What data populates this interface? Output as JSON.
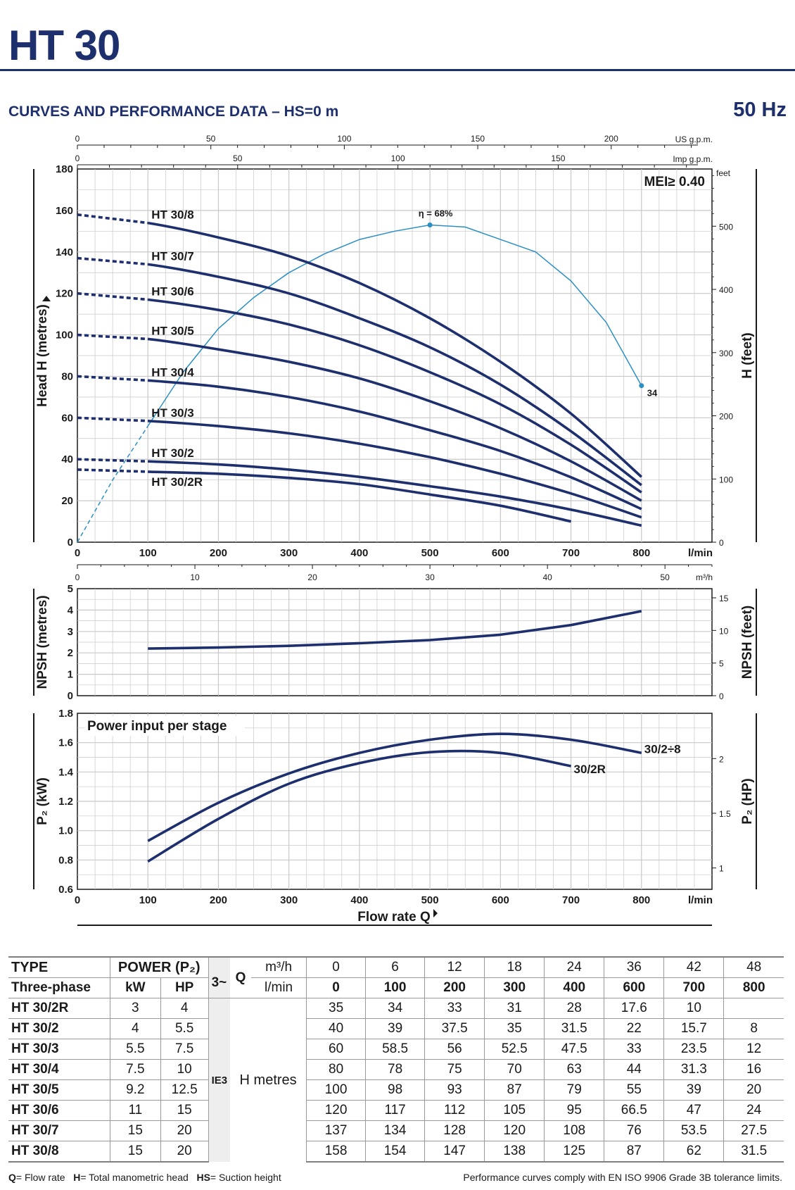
{
  "header": {
    "title": "HT 30",
    "subtitle": "CURVES AND PERFORMANCE DATA  –  HS=0 m",
    "frequency": "50 Hz"
  },
  "colors": {
    "navy": "#1e2f6e",
    "efficiency": "#2b8fc4",
    "grid": "#c8c8c8"
  },
  "chart_data": [
    {
      "type": "line",
      "name_key": "head",
      "x_unit": "l/min",
      "ylabel": "Head H (metres)",
      "ylabel_right": "H (feet)",
      "xlim": [
        0,
        900
      ],
      "ylim": [
        0,
        180
      ],
      "y_ticks": [
        0,
        20,
        40,
        60,
        80,
        100,
        120,
        140,
        160,
        180
      ],
      "x_ticks": [
        0,
        100,
        200,
        300,
        400,
        500,
        600,
        700,
        800
      ],
      "right_unit": "feet",
      "right_ticks": [
        0,
        100,
        200,
        300,
        400,
        500
      ],
      "top_axis_us": {
        "unit": "US g.p.m.",
        "ticks": [
          0,
          50,
          100,
          150,
          200
        ]
      },
      "top_axis_imp": {
        "unit": "Imp g.p.m.",
        "ticks": [
          0,
          50,
          100,
          150
        ]
      },
      "bottom_m3h": {
        "unit": "m³/h",
        "ticks": [
          0,
          10,
          20,
          30,
          40,
          50
        ]
      },
      "annotation_mei": "MEI≥ 0.40",
      "series": [
        {
          "name": "HT 30/8",
          "x": [
            0,
            100,
            200,
            300,
            400,
            500,
            600,
            700,
            800
          ],
          "y": [
            158,
            154,
            147,
            138,
            125,
            108,
            87,
            62,
            31.5
          ]
        },
        {
          "name": "HT 30/7",
          "x": [
            0,
            100,
            200,
            300,
            400,
            500,
            600,
            700,
            800
          ],
          "y": [
            137,
            134,
            128,
            120,
            108,
            94,
            76,
            53.5,
            27.5
          ]
        },
        {
          "name": "HT 30/6",
          "x": [
            0,
            100,
            200,
            300,
            400,
            500,
            600,
            700,
            800
          ],
          "y": [
            120,
            117,
            112,
            105,
            95,
            82,
            66.5,
            47,
            24
          ]
        },
        {
          "name": "HT 30/5",
          "x": [
            0,
            100,
            200,
            300,
            400,
            500,
            600,
            700,
            800
          ],
          "y": [
            100,
            98,
            93,
            87,
            79,
            68,
            55,
            39,
            20
          ]
        },
        {
          "name": "HT 30/4",
          "x": [
            0,
            100,
            200,
            300,
            400,
            500,
            600,
            700,
            800
          ],
          "y": [
            80,
            78,
            75,
            70,
            63,
            54,
            44,
            31.3,
            16
          ]
        },
        {
          "name": "HT 30/3",
          "x": [
            0,
            100,
            200,
            300,
            400,
            500,
            600,
            700,
            800
          ],
          "y": [
            60,
            58.5,
            56,
            52.5,
            47.5,
            41,
            33,
            23.5,
            12
          ]
        },
        {
          "name": "HT 30/2",
          "x": [
            0,
            100,
            200,
            300,
            400,
            500,
            600,
            700,
            800
          ],
          "y": [
            40,
            39,
            37.5,
            35,
            31.5,
            27,
            22,
            15.7,
            8
          ]
        },
        {
          "name": "HT 30/2R",
          "x": [
            0,
            100,
            200,
            300,
            400,
            500,
            600,
            700
          ],
          "y": [
            35,
            34,
            33,
            31,
            28,
            23,
            17.6,
            10
          ]
        }
      ],
      "efficiency": {
        "label_peak": "η = 68%",
        "label_end": "34",
        "x": [
          0,
          50,
          100,
          150,
          200,
          250,
          300,
          350,
          400,
          450,
          500,
          550,
          600,
          650,
          700,
          750,
          800
        ],
        "y": [
          0,
          30,
          56,
          82,
          103,
          118,
          130,
          139,
          146,
          150,
          153,
          152,
          146,
          140,
          126,
          106,
          75.5
        ]
      }
    },
    {
      "type": "line",
      "name_key": "npsh",
      "ylabel": "NPSH (metres)",
      "ylabel_right": "NPSH  (feet)",
      "xlim": [
        0,
        900
      ],
      "ylim": [
        0,
        5
      ],
      "y_ticks": [
        0,
        1,
        2,
        3,
        4,
        5
      ],
      "right_ticks": [
        0,
        5,
        10,
        15
      ],
      "x": [
        100,
        200,
        300,
        400,
        500,
        600,
        700,
        800
      ],
      "y": [
        2.2,
        2.25,
        2.33,
        2.45,
        2.6,
        2.85,
        3.3,
        3.95
      ]
    },
    {
      "type": "line",
      "name_key": "power",
      "title": "Power input per stage",
      "ylabel": "P₂  (kW)",
      "ylabel_right": "P₂  (HP)",
      "xlabel": "Flow rate Q",
      "x_unit": "l/min",
      "xlim": [
        0,
        900
      ],
      "ylim": [
        0.6,
        1.8
      ],
      "y_ticks": [
        "0.6",
        "0.8",
        "1.0",
        "1.2",
        "1.4",
        "1.6",
        "1.8"
      ],
      "x_ticks": [
        0,
        100,
        200,
        300,
        400,
        500,
        600,
        700,
        800
      ],
      "right_ticks": [
        "1",
        "1.5",
        "2"
      ],
      "series": [
        {
          "name": "30/2÷8",
          "x": [
            100,
            200,
            300,
            400,
            500,
            600,
            700,
            800
          ],
          "y": [
            0.93,
            1.19,
            1.39,
            1.53,
            1.62,
            1.66,
            1.62,
            1.53
          ]
        },
        {
          "name": "30/2R",
          "x": [
            100,
            200,
            300,
            400,
            500,
            600,
            700
          ],
          "y": [
            0.79,
            1.08,
            1.32,
            1.46,
            1.535,
            1.53,
            1.44
          ]
        }
      ]
    }
  ],
  "table": {
    "head_type": "TYPE",
    "head_three_phase": "Three-phase",
    "head_power": "POWER (P₂)",
    "head_kw": "kW",
    "head_hp": "HP",
    "head_phase": "3~",
    "head_q": "Q",
    "head_m3h": "m³/h",
    "head_lmin": "l/min",
    "efficiency_class": "IE3",
    "h_label": "H metres",
    "m3h_values": [
      "0",
      "6",
      "12",
      "18",
      "24",
      "36",
      "42",
      "48"
    ],
    "lmin_values": [
      "0",
      "100",
      "200",
      "300",
      "400",
      "600",
      "700",
      "800"
    ],
    "rows": [
      {
        "type": "HT 30/2R",
        "kw": "3",
        "hp": "4",
        "values": [
          "35",
          "34",
          "33",
          "31",
          "28",
          "17.6",
          "10",
          ""
        ]
      },
      {
        "type": "HT 30/2",
        "kw": "4",
        "hp": "5.5",
        "values": [
          "40",
          "39",
          "37.5",
          "35",
          "31.5",
          "22",
          "15.7",
          "8"
        ]
      },
      {
        "type": "HT 30/3",
        "kw": "5.5",
        "hp": "7.5",
        "values": [
          "60",
          "58.5",
          "56",
          "52.5",
          "47.5",
          "33",
          "23.5",
          "12"
        ]
      },
      {
        "type": "HT 30/4",
        "kw": "7.5",
        "hp": "10",
        "values": [
          "80",
          "78",
          "75",
          "70",
          "63",
          "44",
          "31.3",
          "16"
        ]
      },
      {
        "type": "HT 30/5",
        "kw": "9.2",
        "hp": "12.5",
        "values": [
          "100",
          "98",
          "93",
          "87",
          "79",
          "55",
          "39",
          "20"
        ]
      },
      {
        "type": "HT 30/6",
        "kw": "11",
        "hp": "15",
        "values": [
          "120",
          "117",
          "112",
          "105",
          "95",
          "66.5",
          "47",
          "24"
        ]
      },
      {
        "type": "HT 30/7",
        "kw": "15",
        "hp": "20",
        "values": [
          "137",
          "134",
          "128",
          "120",
          "108",
          "76",
          "53.5",
          "27.5"
        ]
      },
      {
        "type": "HT 30/8",
        "kw": "15",
        "hp": "20",
        "values": [
          "158",
          "154",
          "147",
          "138",
          "125",
          "87",
          "62",
          "31.5"
        ]
      }
    ]
  },
  "footer": {
    "legend_q": "Q",
    "legend_q_text": "= Flow rate",
    "legend_h": "H",
    "legend_h_text": "= Total manometric head",
    "legend_hs": "HS",
    "legend_hs_text": "= Suction height",
    "note": "Performance curves comply with EN ISO 9906 Grade 3B tolerance limits."
  }
}
